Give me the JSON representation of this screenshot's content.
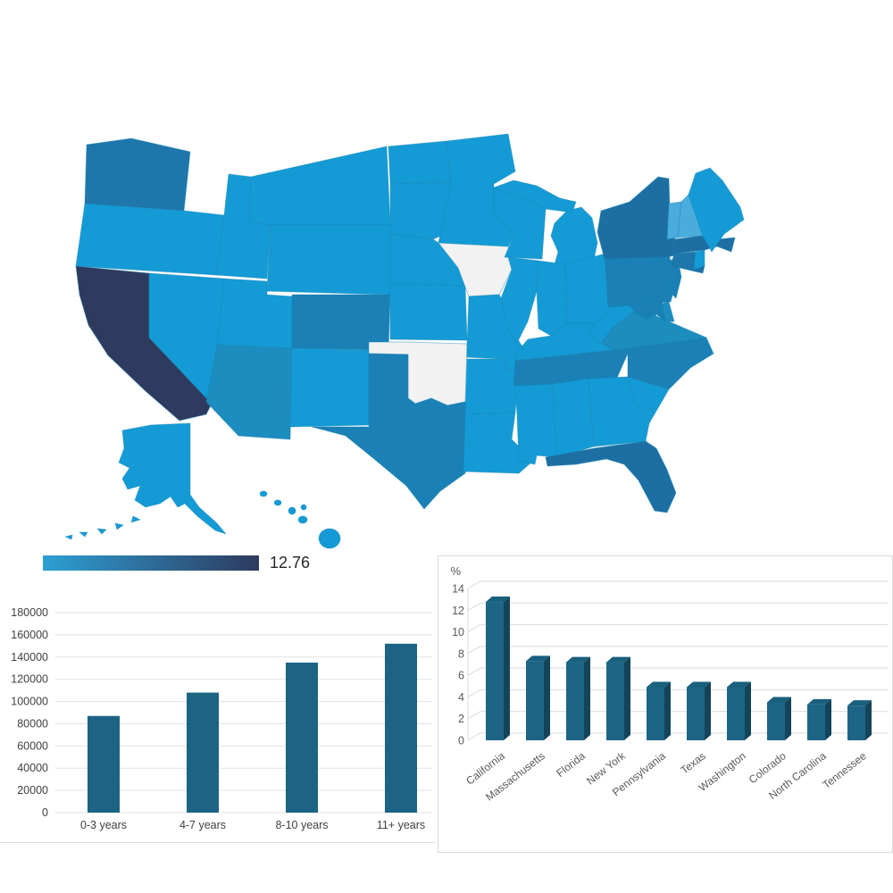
{
  "map": {
    "legend": {
      "max_label": "12.76",
      "gradient_start": "#2d9fd3",
      "gradient_end": "#2e3a5e"
    },
    "tones": {
      "max": "#2e3a5e",
      "high": "#1d6fa3",
      "mediumHigh": "#1e76ab",
      "medium": "#1a80b5",
      "mediumLow": "#1d8cbf",
      "base": "#149bd5",
      "light": "#4aacdd",
      "none": "#f2f2f2"
    },
    "border_color": "#1583b4",
    "states": [
      {
        "id": "WA",
        "name": "Washington",
        "tone": "mediumHigh",
        "value": 4.9
      },
      {
        "id": "OR",
        "name": "Oregon",
        "tone": "base"
      },
      {
        "id": "CA",
        "name": "California",
        "tone": "max",
        "value": 12.76
      },
      {
        "id": "NV",
        "name": "Nevada",
        "tone": "base"
      },
      {
        "id": "ID",
        "name": "Idaho",
        "tone": "base"
      },
      {
        "id": "MT",
        "name": "Montana",
        "tone": "base"
      },
      {
        "id": "WY",
        "name": "Wyoming",
        "tone": "base"
      },
      {
        "id": "UT",
        "name": "Utah",
        "tone": "base"
      },
      {
        "id": "CO",
        "name": "Colorado",
        "tone": "medium",
        "value": 3.5
      },
      {
        "id": "AZ",
        "name": "Arizona",
        "tone": "mediumLow"
      },
      {
        "id": "NM",
        "name": "New Mexico",
        "tone": "base"
      },
      {
        "id": "ND",
        "name": "North Dakota",
        "tone": "base"
      },
      {
        "id": "SD",
        "name": "South Dakota",
        "tone": "base"
      },
      {
        "id": "NE",
        "name": "Nebraska",
        "tone": "base"
      },
      {
        "id": "KS",
        "name": "Kansas",
        "tone": "base"
      },
      {
        "id": "OK",
        "name": "Oklahoma",
        "tone": "none"
      },
      {
        "id": "TX",
        "name": "Texas",
        "tone": "medium",
        "value": 4.9
      },
      {
        "id": "MN",
        "name": "Minnesota",
        "tone": "base"
      },
      {
        "id": "IA",
        "name": "Iowa",
        "tone": "none"
      },
      {
        "id": "MO",
        "name": "Missouri",
        "tone": "base"
      },
      {
        "id": "AR",
        "name": "Arkansas",
        "tone": "base"
      },
      {
        "id": "LA",
        "name": "Louisiana",
        "tone": "base"
      },
      {
        "id": "WI",
        "name": "Wisconsin",
        "tone": "base"
      },
      {
        "id": "MI",
        "name": "Michigan",
        "tone": "base"
      },
      {
        "id": "IL",
        "name": "Illinois",
        "tone": "base"
      },
      {
        "id": "IN",
        "name": "Indiana",
        "tone": "base"
      },
      {
        "id": "OH",
        "name": "Ohio",
        "tone": "base"
      },
      {
        "id": "KY",
        "name": "Kentucky",
        "tone": "base"
      },
      {
        "id": "TN",
        "name": "Tennessee",
        "tone": "medium",
        "value": 3.2
      },
      {
        "id": "MS",
        "name": "Mississippi",
        "tone": "base"
      },
      {
        "id": "AL",
        "name": "Alabama",
        "tone": "base"
      },
      {
        "id": "GA",
        "name": "Georgia",
        "tone": "base"
      },
      {
        "id": "SC",
        "name": "South Carolina",
        "tone": "base"
      },
      {
        "id": "NC",
        "name": "North Carolina",
        "tone": "medium",
        "value": 3.3
      },
      {
        "id": "FL",
        "name": "Florida",
        "tone": "high",
        "value": 7.2
      },
      {
        "id": "VA",
        "name": "Virginia",
        "tone": "mediumLow"
      },
      {
        "id": "WV",
        "name": "West Virginia",
        "tone": "base"
      },
      {
        "id": "PA",
        "name": "Pennsylvania",
        "tone": "medium",
        "value": 4.9
      },
      {
        "id": "NY",
        "name": "New York",
        "tone": "high",
        "value": 7.2
      },
      {
        "id": "NJ",
        "name": "New Jersey",
        "tone": "medium"
      },
      {
        "id": "DE",
        "name": "Delaware",
        "tone": "mediumLow"
      },
      {
        "id": "MD",
        "name": "Maryland",
        "tone": "medium"
      },
      {
        "id": "CT",
        "name": "Connecticut",
        "tone": "mediumHigh"
      },
      {
        "id": "RI",
        "name": "Rhode Island",
        "tone": "base"
      },
      {
        "id": "MA",
        "name": "Massachusetts",
        "tone": "high",
        "value": 7.3
      },
      {
        "id": "VT",
        "name": "Vermont",
        "tone": "light"
      },
      {
        "id": "NH",
        "name": "New Hampshire",
        "tone": "light"
      },
      {
        "id": "ME",
        "name": "Maine",
        "tone": "base"
      },
      {
        "id": "AK",
        "name": "Alaska",
        "tone": "base"
      },
      {
        "id": "HI",
        "name": "Hawaii",
        "tone": "base"
      }
    ]
  },
  "chart_data": [
    {
      "type": "choropleth",
      "title": "",
      "unit": "%",
      "legend_max": "12.76",
      "values": {
        "California": 12.76,
        "Massachusetts": 7.3,
        "Florida": 7.2,
        "New York": 7.2,
        "Pennsylvania": 4.9,
        "Texas": 4.9,
        "Washington": 4.9,
        "Colorado": 3.5,
        "North Carolina": 3.3,
        "Tennessee": 3.2
      },
      "no_data_states": [
        "Iowa",
        "Oklahoma"
      ]
    },
    {
      "type": "bar",
      "categories": [
        "0-3 years",
        "4-7 years",
        "8-10 years",
        "11+ years"
      ],
      "values": [
        87000,
        108000,
        135000,
        152000
      ],
      "title": "",
      "xlabel": "",
      "ylabel": "",
      "ylim": [
        0,
        180000
      ],
      "ytick_step": 20000,
      "grid": true,
      "legend": "none",
      "bar_color": "#1d6484",
      "grid_color": "#e2e2e2",
      "text_color": "#404040"
    },
    {
      "type": "bar3d",
      "categories": [
        "California",
        "Massachusetts",
        "Florida",
        "New York",
        "Pennsylvania",
        "Texas",
        "Washington",
        "Colorado",
        "North Carolina",
        "Tennessee"
      ],
      "values": [
        12.76,
        7.3,
        7.2,
        7.2,
        4.9,
        4.9,
        4.9,
        3.5,
        3.3,
        3.2
      ],
      "title": "",
      "xlabel": "",
      "ylabel": "%",
      "ylim": [
        0,
        14
      ],
      "ytick_step": 2,
      "grid": true,
      "legend": "none",
      "bar_front_color": "#1d6586",
      "bar_top_color": "#195f7e",
      "bar_side_color": "#134459",
      "grid_color": "#d9d9d9",
      "text_color": "#595959",
      "frame_color": "#d9d9d9"
    }
  ]
}
